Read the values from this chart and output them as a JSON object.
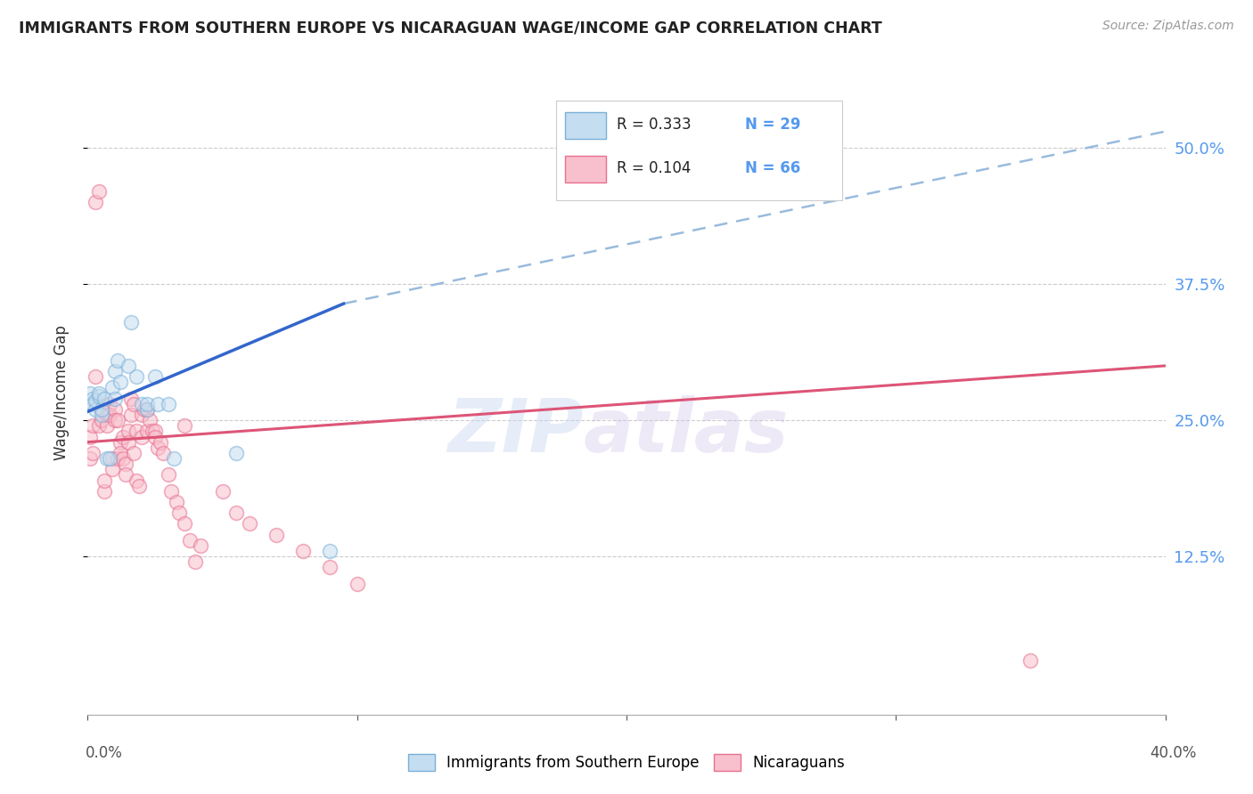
{
  "title": "IMMIGRANTS FROM SOUTHERN EUROPE VS NICARAGUAN WAGE/INCOME GAP CORRELATION CHART",
  "source": "Source: ZipAtlas.com",
  "ylabel": "Wage/Income Gap",
  "ytick_labels": [
    "12.5%",
    "25.0%",
    "37.5%",
    "50.0%"
  ],
  "ytick_values": [
    0.125,
    0.25,
    0.375,
    0.5
  ],
  "legend_entries": [
    {
      "label": "Immigrants from Southern Europe",
      "R": "0.333",
      "N": "29"
    },
    {
      "label": "Nicaraguans",
      "R": "0.104",
      "N": "66"
    }
  ],
  "blue_scatter_x": [
    0.001,
    0.002,
    0.002,
    0.003,
    0.003,
    0.004,
    0.004,
    0.005,
    0.005,
    0.006,
    0.007,
    0.008,
    0.009,
    0.01,
    0.01,
    0.011,
    0.012,
    0.015,
    0.016,
    0.018,
    0.02,
    0.022,
    0.022,
    0.025,
    0.026,
    0.03,
    0.032,
    0.055,
    0.09
  ],
  "blue_scatter_y": [
    0.275,
    0.27,
    0.265,
    0.26,
    0.268,
    0.272,
    0.275,
    0.255,
    0.26,
    0.27,
    0.215,
    0.215,
    0.28,
    0.27,
    0.295,
    0.305,
    0.285,
    0.3,
    0.34,
    0.29,
    0.265,
    0.26,
    0.265,
    0.29,
    0.265,
    0.265,
    0.215,
    0.22,
    0.13
  ],
  "pink_scatter_x": [
    0.001,
    0.001,
    0.002,
    0.002,
    0.003,
    0.003,
    0.004,
    0.004,
    0.005,
    0.005,
    0.006,
    0.006,
    0.007,
    0.007,
    0.008,
    0.008,
    0.009,
    0.009,
    0.01,
    0.01,
    0.011,
    0.011,
    0.012,
    0.012,
    0.013,
    0.013,
    0.014,
    0.014,
    0.015,
    0.015,
    0.016,
    0.016,
    0.017,
    0.017,
    0.018,
    0.018,
    0.019,
    0.02,
    0.02,
    0.021,
    0.022,
    0.022,
    0.023,
    0.024,
    0.025,
    0.025,
    0.026,
    0.027,
    0.028,
    0.03,
    0.031,
    0.033,
    0.034,
    0.036,
    0.036,
    0.038,
    0.04,
    0.042,
    0.05,
    0.055,
    0.06,
    0.07,
    0.08,
    0.09,
    0.1,
    0.35
  ],
  "pink_scatter_y": [
    0.235,
    0.215,
    0.245,
    0.22,
    0.29,
    0.45,
    0.46,
    0.245,
    0.26,
    0.25,
    0.185,
    0.195,
    0.255,
    0.245,
    0.265,
    0.255,
    0.215,
    0.205,
    0.26,
    0.25,
    0.25,
    0.215,
    0.23,
    0.22,
    0.235,
    0.215,
    0.21,
    0.2,
    0.24,
    0.23,
    0.27,
    0.255,
    0.265,
    0.22,
    0.24,
    0.195,
    0.19,
    0.255,
    0.235,
    0.26,
    0.24,
    0.26,
    0.25,
    0.24,
    0.24,
    0.235,
    0.225,
    0.23,
    0.22,
    0.2,
    0.185,
    0.175,
    0.165,
    0.245,
    0.155,
    0.14,
    0.12,
    0.135,
    0.185,
    0.165,
    0.155,
    0.145,
    0.13,
    0.115,
    0.1,
    0.03
  ],
  "blue_line_x0": 0.0,
  "blue_line_x1": 0.095,
  "blue_line_y0": 0.258,
  "blue_line_y1": 0.357,
  "dashed_line_x0": 0.095,
  "dashed_line_x1": 0.4,
  "dashed_line_y0": 0.357,
  "dashed_line_y1": 0.515,
  "pink_line_x0": 0.0,
  "pink_line_x1": 0.4,
  "pink_line_y0": 0.23,
  "pink_line_y1": 0.3,
  "scatter_size": 130,
  "scatter_alpha": 0.55,
  "blue_edge_color": "#7ab0d8",
  "blue_fill_color": "#c5ddf0",
  "pink_edge_color": "#e87090",
  "pink_fill_color": "#f8c0cc",
  "trend_blue_color": "#3366cc",
  "trend_pink_color": "#dd5577",
  "trend_dashed_color": "#99bbdd",
  "watermark_text": "ZIP",
  "watermark_text2": "atlas",
  "background_color": "#ffffff",
  "right_axis_color": "#5599ee",
  "xlim": [
    0.0,
    0.4
  ],
  "ylim": [
    -0.02,
    0.57
  ]
}
